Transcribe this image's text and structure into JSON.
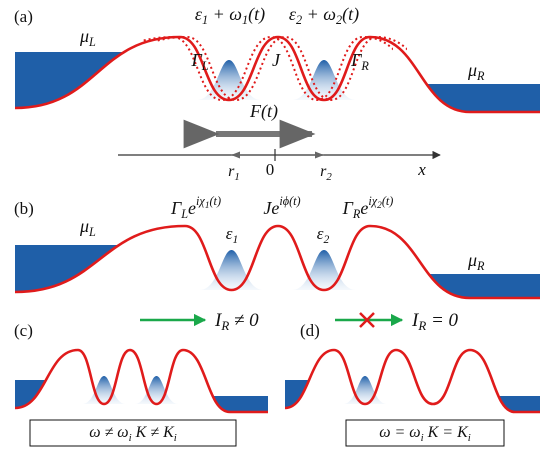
{
  "panel_a": {
    "label": "(a)",
    "energy_1": [
      {
        "t": "ε"
      },
      {
        "sub": "1"
      },
      {
        "t": " + ω"
      },
      {
        "sub": "1"
      },
      {
        "t": "(t)"
      }
    ],
    "energy_2": [
      {
        "t": "ε"
      },
      {
        "sub": "2"
      },
      {
        "t": " + ω"
      },
      {
        "sub": "2"
      },
      {
        "t": "(t)"
      }
    ],
    "mu_left": [
      {
        "t": "μ"
      },
      {
        "sub": "L"
      }
    ],
    "gamma_left": [
      {
        "t": "Γ"
      },
      {
        "sub": "L"
      }
    ],
    "coupling": [
      {
        "t": "J"
      }
    ],
    "gamma_right": [
      {
        "t": "Γ"
      },
      {
        "sub": "R"
      }
    ],
    "mu_right": [
      {
        "t": "μ"
      },
      {
        "sub": "R"
      }
    ],
    "force": [
      {
        "t": "F(t)"
      }
    ],
    "axis": {
      "r1": [
        {
          "t": "r"
        },
        {
          "sub": "1"
        }
      ],
      "origin": "0",
      "r2": [
        {
          "t": "r"
        },
        {
          "sub": "2"
        }
      ],
      "x": "x"
    }
  },
  "panel_b": {
    "label": "(b)",
    "gamma_left": [
      {
        "t": "Γ"
      },
      {
        "sub": "L"
      },
      {
        "t": "e"
      },
      {
        "sup": "iχ"
      },
      {
        "supsub": "1"
      },
      {
        "sup": "(t)"
      }
    ],
    "coupling": [
      {
        "t": "Je"
      },
      {
        "sup": "iϕ(t)"
      }
    ],
    "gamma_right": [
      {
        "t": "Γ"
      },
      {
        "sub": "R"
      },
      {
        "t": "e"
      },
      {
        "sup": "iχ"
      },
      {
        "supsub": "2"
      },
      {
        "sup": "(t)"
      }
    ],
    "mu_left": [
      {
        "t": "μ"
      },
      {
        "sub": "L"
      }
    ],
    "energy_1": [
      {
        "t": "ε"
      },
      {
        "sub": "1"
      }
    ],
    "energy_2": [
      {
        "t": "ε"
      },
      {
        "sub": "2"
      }
    ],
    "mu_right": [
      {
        "t": "μ"
      },
      {
        "sub": "R"
      }
    ]
  },
  "panel_c": {
    "label": "(c)",
    "current": [
      {
        "t": "I"
      },
      {
        "sub": "R"
      },
      {
        "t": " ≠ 0"
      }
    ],
    "condition": [
      {
        "t": "ω ≠ ω"
      },
      {
        "sub": "i"
      },
      {
        "t": "   K ≠ K"
      },
      {
        "sub": "i"
      }
    ]
  },
  "panel_d": {
    "label": "(d)",
    "current": [
      {
        "t": "I"
      },
      {
        "sub": "R"
      },
      {
        "t": " = 0"
      }
    ],
    "condition": [
      {
        "t": "ω = ω"
      },
      {
        "sub": "i"
      },
      {
        "t": "   K = K"
      },
      {
        "sub": "i"
      }
    ]
  }
}
